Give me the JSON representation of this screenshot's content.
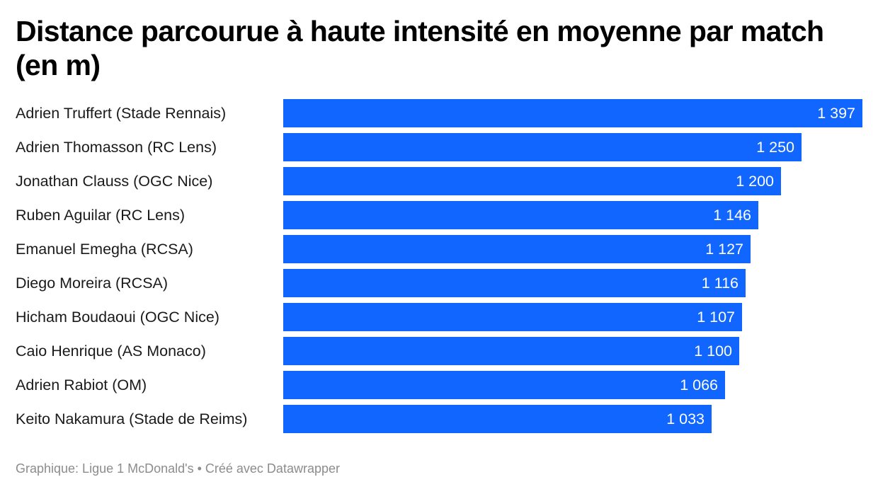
{
  "title": "Distance parcourue à haute intensité en moyenne par match (en m)",
  "footer": "Graphique: Ligue 1 McDonald's • Créé avec Datawrapper",
  "colors": {
    "bar": "#1166ff",
    "value_text": "#ffffff",
    "footer_text": "#8c8c8c"
  },
  "chart_data": {
    "type": "bar",
    "orientation": "horizontal",
    "title": "Distance parcourue à haute intensité en moyenne par match (en m)",
    "xlabel": "",
    "ylabel": "",
    "grid": false,
    "xlim": [
      0,
      1397
    ],
    "categories": [
      "Adrien Truffert (Stade Rennais)",
      "Adrien Thomasson (RC Lens)",
      "Jonathan Clauss (OGC Nice)",
      "Ruben Aguilar (RC Lens)",
      "Emanuel Emegha (RCSA)",
      "Diego Moreira (RCSA)",
      "Hicham Boudaoui (OGC Nice)",
      "Caio Henrique (AS Monaco)",
      "Adrien Rabiot (OM)",
      "Keito Nakamura (Stade de Reims)"
    ],
    "values": [
      1397,
      1250,
      1200,
      1146,
      1127,
      1116,
      1107,
      1100,
      1066,
      1033
    ],
    "value_labels": [
      "1 397",
      "1 250",
      "1 200",
      "1 146",
      "1 127",
      "1 116",
      "1 107",
      "1 100",
      "1 066",
      "1 033"
    ]
  }
}
